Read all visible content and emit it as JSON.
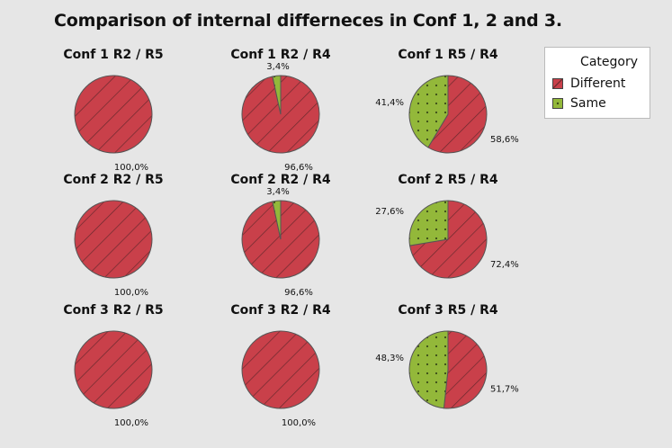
{
  "title": "Comparison of internal differneces in Conf 1, 2 and 3.",
  "legend": {
    "title": "Category",
    "items": [
      {
        "label": "Different",
        "color": "#c9404a",
        "pattern": "diagonal-lines"
      },
      {
        "label": "Same",
        "color": "#93b83a",
        "pattern": "dots"
      }
    ]
  },
  "chart_data": {
    "type": "pie",
    "layout": "3x3 grid",
    "legend_placement": "top-right",
    "categories": [
      "Different",
      "Same"
    ],
    "colors": [
      "#c9404a",
      "#93b83a"
    ],
    "pies": [
      {
        "title": "Conf 1 R2 / R5",
        "values": [
          100.0,
          0.0
        ],
        "labels": [
          "100,0%",
          ""
        ]
      },
      {
        "title": "Conf 1 R2 / R4",
        "values": [
          96.6,
          3.4
        ],
        "labels": [
          "96,6%",
          "3,4%"
        ]
      },
      {
        "title": "Conf 1 R5 / R4",
        "values": [
          58.6,
          41.4
        ],
        "labels": [
          "58,6%",
          "41,4%"
        ]
      },
      {
        "title": "Conf 2 R2 / R5",
        "values": [
          100.0,
          0.0
        ],
        "labels": [
          "100,0%",
          ""
        ]
      },
      {
        "title": "Conf 2 R2 / R4",
        "values": [
          96.6,
          3.4
        ],
        "labels": [
          "96,6%",
          "3,4%"
        ]
      },
      {
        "title": "Conf 2 R5 / R4",
        "values": [
          72.4,
          27.6
        ],
        "labels": [
          "72,4%",
          "27,6%"
        ]
      },
      {
        "title": "Conf 3 R2 / R5",
        "values": [
          100.0,
          0.0
        ],
        "labels": [
          "100,0%",
          ""
        ]
      },
      {
        "title": "Conf 3 R2 / R4",
        "values": [
          100.0,
          0.0
        ],
        "labels": [
          "100,0%",
          ""
        ]
      },
      {
        "title": "Conf 3 R5 / R4",
        "values": [
          51.7,
          48.3
        ],
        "labels": [
          "51,7%",
          "48,3%"
        ]
      }
    ]
  }
}
